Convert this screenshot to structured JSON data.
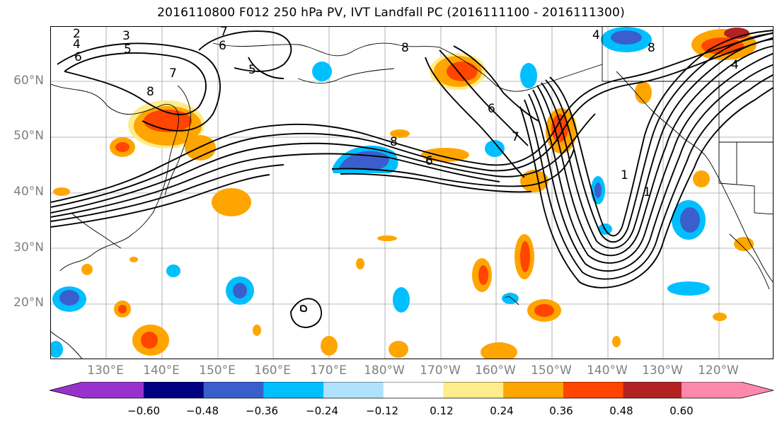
{
  "title": "2016110800 F012 250 hPa PV, IVT Landfall PC (2016111100 - 2016111300)",
  "lat_labels": [
    "60°N",
    "50°N",
    "40°N",
    "30°N",
    "20°N"
  ],
  "lon_labels": [
    "130°E",
    "140°E",
    "150°E",
    "160°E",
    "170°E",
    "180°W",
    "170°W",
    "160°W",
    "150°W",
    "140°W",
    "130°W",
    "120°W"
  ],
  "contour_labels": [
    "2",
    "3",
    "4",
    "5",
    "6",
    "7",
    "8",
    "7",
    "5",
    "6",
    "8",
    "8",
    "6",
    "6",
    "7",
    "4",
    "8",
    "4",
    "1",
    "1"
  ],
  "colorbar": {
    "colors": [
      "#9932cc",
      "#000080",
      "#3a5fcd",
      "#00bfff",
      "#b0e2ff",
      "#ffffff",
      "#ffec8b",
      "#ffa500",
      "#ff4500",
      "#b22222",
      "#ff89ac"
    ],
    "ticks": [
      "−0.60",
      "−0.48",
      "−0.36",
      "−0.24",
      "−0.12",
      "0.12",
      "0.24",
      "0.36",
      "0.48",
      "0.60"
    ]
  }
}
